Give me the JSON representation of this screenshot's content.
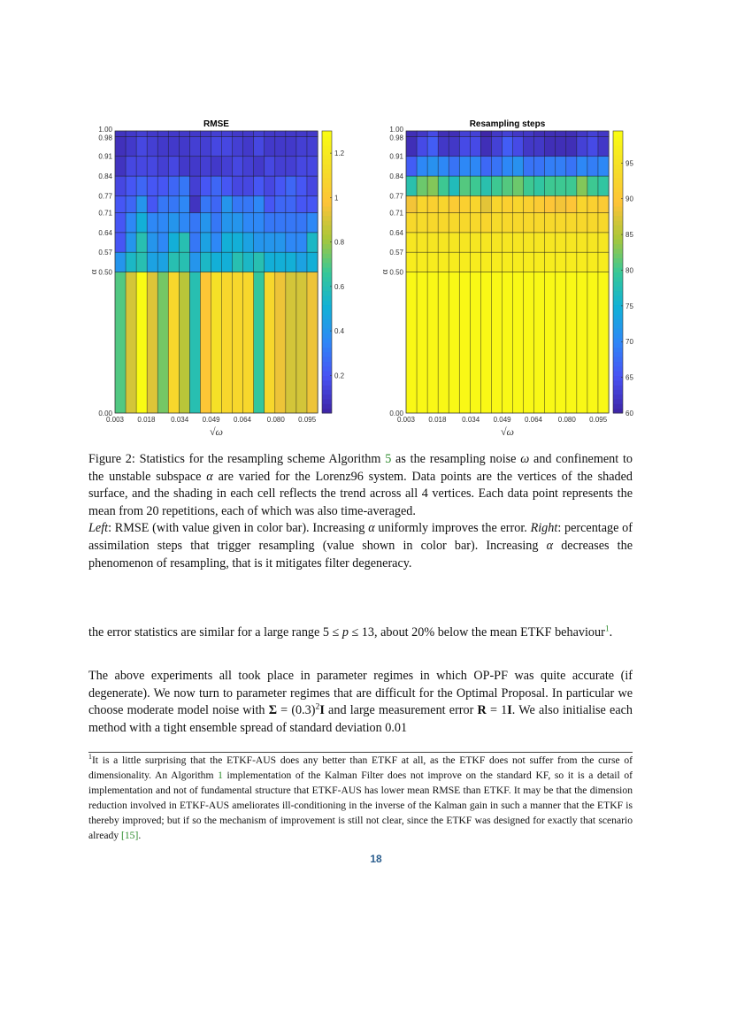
{
  "chart_data": [
    {
      "type": "heatmap",
      "title": "RMSE",
      "xlabel": "√ω",
      "ylabel": "α",
      "x_ticks": [
        "0.003",
        "0.018",
        "0.034",
        "0.049",
        "0.064",
        "0.080",
        "0.095"
      ],
      "x_tick_values": [
        0.003,
        0.018,
        0.034,
        0.049,
        0.064,
        0.08,
        0.095
      ],
      "xlim": [
        0.003,
        0.1
      ],
      "y_ticks": [
        "0.00",
        "0.50",
        "0.57",
        "0.64",
        "0.71",
        "0.77",
        "0.84",
        "0.91",
        "0.98",
        "1.00"
      ],
      "y_edges": [
        0.0,
        0.5,
        0.57,
        0.64,
        0.71,
        0.77,
        0.84,
        0.91,
        0.98,
        1.0
      ],
      "ylim": [
        0,
        1
      ],
      "colormap": "parula",
      "colorbar_ticks": [
        "0.2",
        "0.4",
        "0.6",
        "0.8",
        "1",
        "1.2"
      ],
      "colorbar_tick_values": [
        0.2,
        0.4,
        0.6,
        0.8,
        1.0,
        1.2
      ],
      "clim": [
        0.03,
        1.3
      ],
      "grid": true,
      "cells": [
        [
          0.7,
          0.9,
          1.3,
          0.92,
          0.75,
          1.1,
          0.85,
          0.6,
          1.0,
          1.15,
          1.1,
          1.1,
          1.1,
          0.65,
          1.1,
          0.95,
          0.9,
          0.9,
          0.95
        ],
        [
          0.4,
          0.55,
          0.6,
          0.45,
          0.45,
          0.6,
          0.6,
          0.4,
          0.55,
          0.5,
          0.5,
          0.6,
          0.55,
          0.6,
          0.5,
          0.5,
          0.5,
          0.45,
          0.5
        ],
        [
          0.2,
          0.4,
          0.6,
          0.4,
          0.35,
          0.5,
          0.6,
          0.3,
          0.45,
          0.35,
          0.5,
          0.5,
          0.45,
          0.4,
          0.4,
          0.4,
          0.35,
          0.35,
          0.55
        ],
        [
          0.2,
          0.35,
          0.5,
          0.35,
          0.35,
          0.4,
          0.35,
          0.3,
          0.4,
          0.3,
          0.4,
          0.4,
          0.35,
          0.35,
          0.3,
          0.3,
          0.3,
          0.3,
          0.35
        ],
        [
          0.2,
          0.25,
          0.4,
          0.2,
          0.3,
          0.3,
          0.35,
          0.08,
          0.3,
          0.25,
          0.4,
          0.3,
          0.3,
          0.35,
          0.2,
          0.25,
          0.25,
          0.2,
          0.2
        ],
        [
          0.15,
          0.2,
          0.25,
          0.2,
          0.2,
          0.25,
          0.3,
          0.12,
          0.2,
          0.25,
          0.2,
          0.15,
          0.15,
          0.2,
          0.15,
          0.2,
          0.25,
          0.2,
          0.15
        ],
        [
          0.08,
          0.15,
          0.15,
          0.15,
          0.12,
          0.15,
          0.1,
          0.1,
          0.12,
          0.1,
          0.12,
          0.15,
          0.12,
          0.1,
          0.15,
          0.12,
          0.12,
          0.15,
          0.15
        ],
        [
          0.07,
          0.1,
          0.15,
          0.12,
          0.1,
          0.1,
          0.1,
          0.12,
          0.12,
          0.15,
          0.15,
          0.12,
          0.1,
          0.15,
          0.1,
          0.1,
          0.1,
          0.12,
          0.12
        ],
        [
          0.08,
          0.1,
          0.12,
          0.1,
          0.1,
          0.1,
          0.1,
          0.1,
          0.1,
          0.12,
          0.12,
          0.1,
          0.1,
          0.12,
          0.1,
          0.1,
          0.1,
          0.1,
          0.1
        ]
      ]
    },
    {
      "type": "heatmap",
      "title": "Resampling steps",
      "xlabel": "√ω",
      "ylabel": "α",
      "x_ticks": [
        "0.003",
        "0.018",
        "0.034",
        "0.049",
        "0.064",
        "0.080",
        "0.095"
      ],
      "x_tick_values": [
        0.003,
        0.018,
        0.034,
        0.049,
        0.064,
        0.08,
        0.095
      ],
      "xlim": [
        0.003,
        0.1
      ],
      "y_ticks": [
        "0.00",
        "0.50",
        "0.57",
        "0.64",
        "0.71",
        "0.77",
        "0.84",
        "0.91",
        "0.98",
        "1.00"
      ],
      "y_edges": [
        0.0,
        0.5,
        0.57,
        0.64,
        0.71,
        0.77,
        0.84,
        0.91,
        0.98,
        1.0
      ],
      "ylim": [
        0,
        1
      ],
      "colormap": "parula",
      "colorbar_ticks": [
        "60",
        "65",
        "70",
        "75",
        "80",
        "85",
        "90",
        "95"
      ],
      "colorbar_tick_values": [
        60,
        65,
        70,
        75,
        80,
        85,
        90,
        95
      ],
      "clim": [
        60,
        99.5
      ],
      "grid": true,
      "cells": [
        [
          99,
          99,
          99,
          99,
          99,
          99,
          99,
          99,
          99,
          99,
          99,
          99,
          99,
          99,
          99,
          99,
          99,
          99,
          99
        ],
        [
          97,
          97,
          97,
          97,
          97,
          97,
          97,
          97,
          97,
          97,
          97,
          97,
          97,
          97,
          97,
          97,
          97,
          97,
          97
        ],
        [
          96,
          96,
          96,
          96,
          96,
          96,
          96,
          96,
          96,
          96,
          96,
          96,
          96,
          96,
          96,
          96,
          96,
          96,
          96
        ],
        [
          93.5,
          94,
          93.5,
          93.5,
          93.5,
          93.5,
          93.5,
          93,
          94,
          93.5,
          93.5,
          93.5,
          93.5,
          93.5,
          93.5,
          93.5,
          93.5,
          93.5,
          93.5
        ],
        [
          89,
          93,
          92,
          93,
          91,
          92,
          93,
          88,
          93,
          92,
          93,
          92,
          91,
          90,
          89,
          90,
          93,
          92,
          91
        ],
        [
          78,
          82,
          83,
          80,
          77,
          81,
          80,
          78,
          80,
          81,
          82,
          80,
          79,
          80,
          80,
          80,
          83,
          80,
          79
        ],
        [
          66,
          70,
          71,
          70,
          68,
          70,
          70,
          67,
          68,
          70,
          71,
          68,
          68,
          69,
          69,
          68,
          70,
          69,
          70
        ],
        [
          61,
          64,
          66,
          62,
          62,
          64,
          64,
          61,
          63,
          66,
          64,
          62,
          62,
          61,
          61,
          61,
          63,
          64,
          62
        ],
        [
          61,
          62,
          64,
          61,
          61,
          63,
          63,
          60,
          62,
          63,
          62,
          62,
          61,
          61,
          61,
          61,
          62,
          63,
          62
        ]
      ]
    }
  ],
  "caption": {
    "segments": [
      {
        "t": "Figure 2: Statistics for the resampling scheme Algorithm "
      },
      {
        "t": "5",
        "s": "ref"
      },
      {
        "t": " as the resampling noise "
      },
      {
        "t": "ω",
        "s": "it"
      },
      {
        "t": " and confinement to the unstable subspace "
      },
      {
        "t": "α",
        "s": "it"
      },
      {
        "t": " are varied for the Lorenz96 system. Data points are the vertices of the shaded surface, and the shading in each cell reflects the trend across all 4 vertices. Each data point represents the mean from 20 repetitions, each of which was also time-averaged."
      },
      {
        "t": "",
        "s": "br"
      },
      {
        "t": "Left",
        "s": "it"
      },
      {
        "t": ": RMSE (with value given in color bar). Increasing "
      },
      {
        "t": "α",
        "s": "it"
      },
      {
        "t": " uniformly improves the error. "
      },
      {
        "t": "Right",
        "s": "it"
      },
      {
        "t": ": percentage of assimilation steps that trigger resampling (value shown in color bar). Increasing "
      },
      {
        "t": "α",
        "s": "it"
      },
      {
        "t": " decreases the phenomenon of resampling, that is it mitigates filter degeneracy."
      }
    ]
  },
  "body1": {
    "segments": [
      {
        "t": "the error statistics are similar for a large range 5 ≤ "
      },
      {
        "t": "p",
        "s": "it"
      },
      {
        "t": " ≤ 13, about 20% below the mean ETKF behaviour"
      },
      {
        "t": "1",
        "s": "refsup"
      },
      {
        "t": "."
      }
    ]
  },
  "body2": {
    "segments": [
      {
        "t": "The above experiments all took place in parameter regimes in which OP-PF was quite accurate (if degenerate). We now turn to parameter regimes that are difficult for the Optimal Proposal. In particular we choose moderate model noise with "
      },
      {
        "t": "Σ",
        "s": "bf"
      },
      {
        "t": " = (0.3)"
      },
      {
        "t": "2",
        "s": "sup"
      },
      {
        "t": "I",
        "s": "bf"
      },
      {
        "t": " and large measurement error "
      },
      {
        "t": "R",
        "s": "bf"
      },
      {
        "t": " = 1"
      },
      {
        "t": "I",
        "s": "bf"
      },
      {
        "t": ". We also initialise each method with a tight ensemble spread of standard deviation 0.01"
      }
    ]
  },
  "footnote": {
    "segments": [
      {
        "t": "1",
        "s": "sup"
      },
      {
        "t": "It is a little surprising that the ETKF-AUS does any better than ETKF at all, as the ETKF does not suffer from the curse of dimensionality. An Algorithm "
      },
      {
        "t": "1",
        "s": "ref"
      },
      {
        "t": " implementation of the Kalman Filter does not improve on the standard KF, so it is a detail of implementation and not of fundamental structure that ETKF-AUS has lower mean RMSE than ETKF. It may be that the dimension reduction involved in ETKF-AUS ameliorates ill-conditioning in the inverse of the Kalman gain in such a manner that the ETKF is thereby improved; but if so the mechanism of improvement is still not clear, since the ETKF was designed for exactly that scenario already "
      },
      {
        "t": "[15]",
        "s": "ref"
      },
      {
        "t": "."
      }
    ]
  },
  "page_number": "18",
  "colors": {
    "link_green": "#2a8a2a",
    "page_number_blue": "#2b5e8e"
  }
}
